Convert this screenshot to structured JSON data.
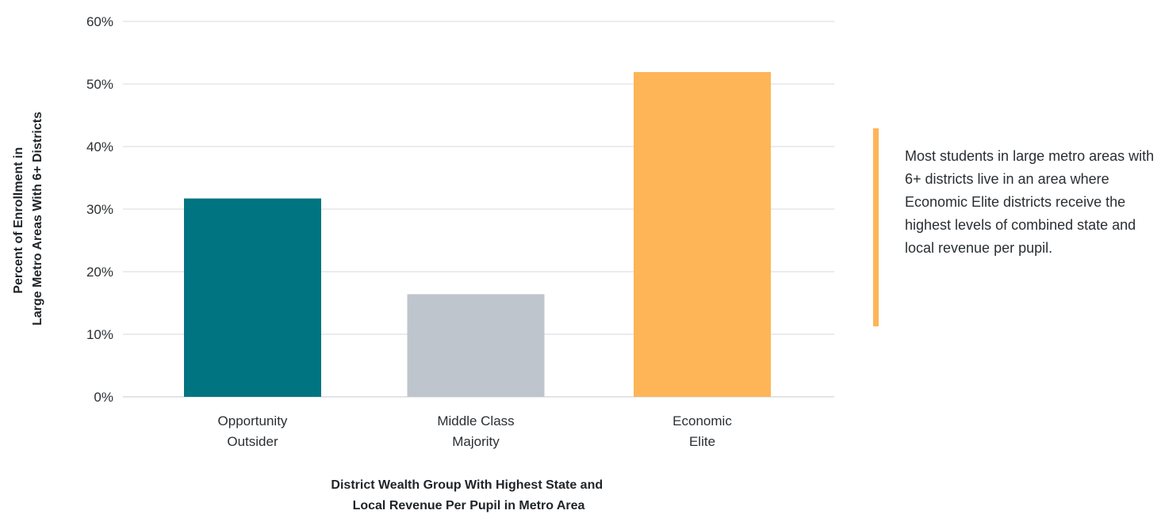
{
  "chart_data": {
    "type": "bar",
    "categories": [
      [
        "Opportunity",
        "Outsider"
      ],
      [
        "Middle Class",
        "Majority"
      ],
      [
        "Economic",
        "Elite"
      ]
    ],
    "values": [
      31.7,
      16.4,
      51.9
    ],
    "bar_colors": [
      "#007480",
      "#bfc5cc",
      "#fdb557"
    ],
    "title": "",
    "xlabel": [
      "District Wealth Group With Highest State and",
      "Local Revenue Per Pupil in Metro Area"
    ],
    "ylabel": [
      "Percent of Enrollment in",
      "Large Metro Areas With 6+ Districts"
    ],
    "ylim": [
      0,
      60
    ],
    "yticks": [
      0,
      10,
      20,
      30,
      40,
      50,
      60
    ],
    "ytick_labels": [
      "0%",
      "10%",
      "20%",
      "30%",
      "40%",
      "50%",
      "60%"
    ],
    "grid": true,
    "legend": "none"
  },
  "callout": {
    "text": "Most students in large metro areas with 6+ districts live in an area where Economic Elite districts receive the highest levels of combined state and local revenue per pupil.",
    "accent_color": "#fdb557"
  }
}
